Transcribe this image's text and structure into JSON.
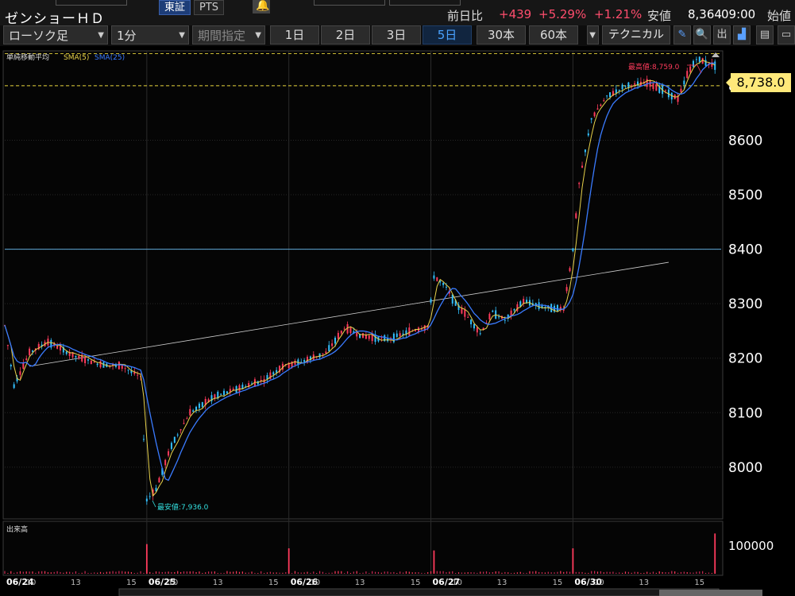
{
  "header": {
    "stock_name": "ゼンショーＨＤ",
    "exchange_tabs": [
      "東証",
      "PTS"
    ],
    "change_label": "前日比",
    "change_value": "+439",
    "change_pct": "+5.29%",
    "index_pct": "+1.21%",
    "low_label": "安値",
    "low_value": "8,364",
    "low_time": "09:00",
    "open_label": "始値"
  },
  "toolbar": {
    "chart_type": "ローソク足",
    "interval": "1分",
    "range_select": "期間指定",
    "periods": [
      "1日",
      "2日",
      "3日",
      "5日",
      "30本",
      "60本"
    ],
    "active_period": "5日",
    "technical_label": "テクニカル",
    "icons": [
      "pencil-icon",
      "zoom-icon",
      "export-icon",
      "area-chart-icon",
      "save-icon",
      "window-icon"
    ]
  },
  "legend": {
    "indicator_label": "単純移動平均",
    "sma_short": "SMA(5)",
    "sma_long": "SMA(25)"
  },
  "annotations": {
    "high_label": "最高値:8,759.0",
    "low_label": "最安値:7,936.0",
    "current_price": "8,738.0"
  },
  "volume_panel": {
    "label": "出来高",
    "axis_tick": "100000"
  },
  "colors": {
    "up": "#ff3b5c",
    "down": "#33c0ff",
    "sma_short": "#e8d24a",
    "sma_long": "#3a7bff",
    "current_price_bg": "#ffe97a",
    "positive_text": "#ff4d6d"
  },
  "chart_data": {
    "type": "line",
    "x_labels": [
      "06/24",
      "10",
      "13",
      "15",
      "06/25",
      "10",
      "13",
      "15",
      "06/26",
      "10",
      "13",
      "15",
      "06/27",
      "10",
      "13",
      "15",
      "06/30",
      "10",
      "13",
      "15"
    ],
    "y_ticks": [
      8000,
      8100,
      8200,
      8300,
      8400,
      8500,
      8600,
      8700
    ],
    "ylim": [
      7905,
      8764
    ],
    "horizontal_lines": [
      8400,
      8700,
      8759
    ],
    "price_series": [
      {
        "x": 0,
        "y": 8260
      },
      {
        "x": 3,
        "y": 8150
      },
      {
        "x": 8,
        "y": 8210
      },
      {
        "x": 14,
        "y": 8230
      },
      {
        "x": 22,
        "y": 8205
      },
      {
        "x": 30,
        "y": 8190
      },
      {
        "x": 38,
        "y": 8185
      },
      {
        "x": 44,
        "y": 8165
      },
      {
        "x": 46,
        "y": 7940
      },
      {
        "x": 49,
        "y": 7960
      },
      {
        "x": 54,
        "y": 8040
      },
      {
        "x": 60,
        "y": 8100
      },
      {
        "x": 68,
        "y": 8130
      },
      {
        "x": 76,
        "y": 8145
      },
      {
        "x": 84,
        "y": 8160
      },
      {
        "x": 90,
        "y": 8185
      },
      {
        "x": 97,
        "y": 8195
      },
      {
        "x": 104,
        "y": 8210
      },
      {
        "x": 110,
        "y": 8255
      },
      {
        "x": 116,
        "y": 8240
      },
      {
        "x": 124,
        "y": 8235
      },
      {
        "x": 132,
        "y": 8250
      },
      {
        "x": 137,
        "y": 8258
      },
      {
        "x": 139,
        "y": 8350
      },
      {
        "x": 143,
        "y": 8330
      },
      {
        "x": 146,
        "y": 8300
      },
      {
        "x": 150,
        "y": 8275
      },
      {
        "x": 154,
        "y": 8245
      },
      {
        "x": 158,
        "y": 8285
      },
      {
        "x": 162,
        "y": 8270
      },
      {
        "x": 168,
        "y": 8305
      },
      {
        "x": 174,
        "y": 8295
      },
      {
        "x": 181,
        "y": 8290
      },
      {
        "x": 184,
        "y": 8400
      },
      {
        "x": 186,
        "y": 8520
      },
      {
        "x": 190,
        "y": 8640
      },
      {
        "x": 195,
        "y": 8680
      },
      {
        "x": 201,
        "y": 8700
      },
      {
        "x": 208,
        "y": 8705
      },
      {
        "x": 214,
        "y": 8690
      },
      {
        "x": 218,
        "y": 8675
      },
      {
        "x": 221,
        "y": 8720
      },
      {
        "x": 224,
        "y": 8750
      },
      {
        "x": 229,
        "y": 8738
      }
    ],
    "trendline": [
      {
        "x": 8,
        "y": 8185
      },
      {
        "x": 215,
        "y": 8376
      }
    ],
    "volume_spikes": [
      {
        "x": 46,
        "v": 70000
      },
      {
        "x": 92,
        "v": 60000
      },
      {
        "x": 139,
        "v": 55000
      },
      {
        "x": 184,
        "v": 60000
      },
      {
        "x": 230,
        "v": 95000
      }
    ],
    "volume_ylim": [
      0,
      120000
    ]
  }
}
